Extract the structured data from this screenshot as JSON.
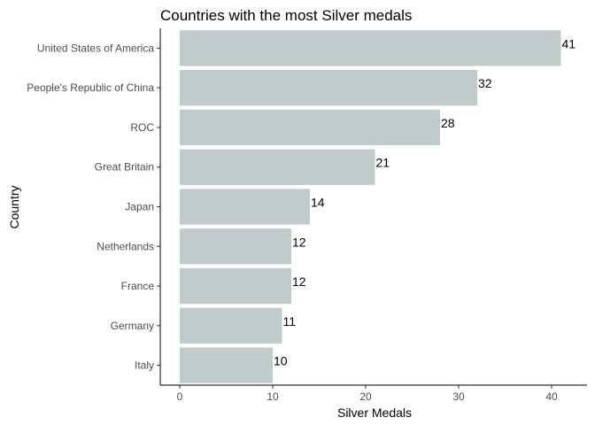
{
  "chart_data": {
    "type": "bar",
    "orientation": "horizontal",
    "title": "Countries with the most Silver medals",
    "xlabel": "Silver Medals",
    "ylabel": "Country",
    "categories": [
      "United States of America",
      "People's Republic of China",
      "ROC",
      "Great Britain",
      "Japan",
      "Netherlands",
      "France",
      "Germany",
      "Italy"
    ],
    "values": [
      41,
      32,
      28,
      21,
      14,
      12,
      12,
      11,
      10
    ],
    "xlim": [
      0,
      43
    ],
    "x_ticks": [
      0,
      10,
      20,
      30,
      40
    ],
    "grid": false,
    "bar_color": "#c0cccc"
  }
}
